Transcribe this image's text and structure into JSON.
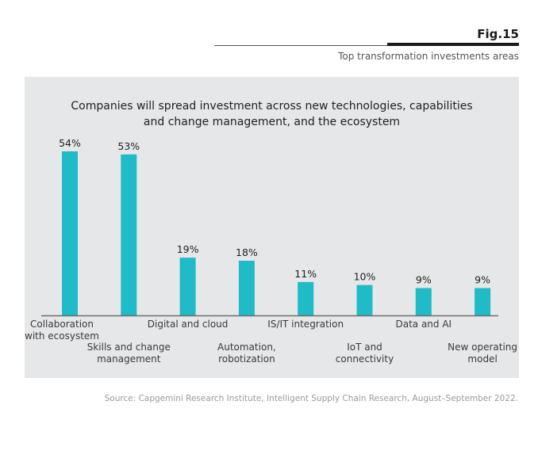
{
  "header": {
    "fig_label": "Fig.15",
    "subtitle": "Top transformation investments areas"
  },
  "source": "Source: Capgemini Research Institute, Intelligent Supply Chain Research, August–September 2022.",
  "colors": {
    "bar": "#1fbcc7",
    "panel": "#e6e7e8",
    "axis": "#6d6d6d"
  },
  "chart_data": {
    "type": "bar",
    "title": "Companies will spread investment across new technologies, capabilities and change management, and the ecosystem",
    "title_lines": [
      "Companies will spread investment across new technologies, capabilities",
      "and change management, and the ecosystem"
    ],
    "categories": [
      "Collaboration with ecosystem",
      "Skills and change management",
      "Digital and cloud",
      "Automation, robotization",
      "IS/IT integration",
      "IoT and connectivity",
      "Data and AI",
      "New operating model"
    ],
    "category_lines": [
      [
        "Collaboration",
        "with ecosystem"
      ],
      [
        "Skills and change",
        "management"
      ],
      [
        "Digital and cloud"
      ],
      [
        "Automation,",
        "robotization"
      ],
      [
        "IS/IT integration"
      ],
      [
        "IoT and",
        "connectivity"
      ],
      [
        "Data and AI"
      ],
      [
        "New operating",
        "model"
      ]
    ],
    "values": [
      54,
      53,
      19,
      18,
      11,
      10,
      9,
      9
    ],
    "data_labels": [
      "54%",
      "53%",
      "19%",
      "18%",
      "11%",
      "10%",
      "9%",
      "9%"
    ],
    "unit": "%",
    "xlabel": "",
    "ylabel": "",
    "ylim": [
      0,
      60
    ],
    "grid": false,
    "legend": "none"
  }
}
